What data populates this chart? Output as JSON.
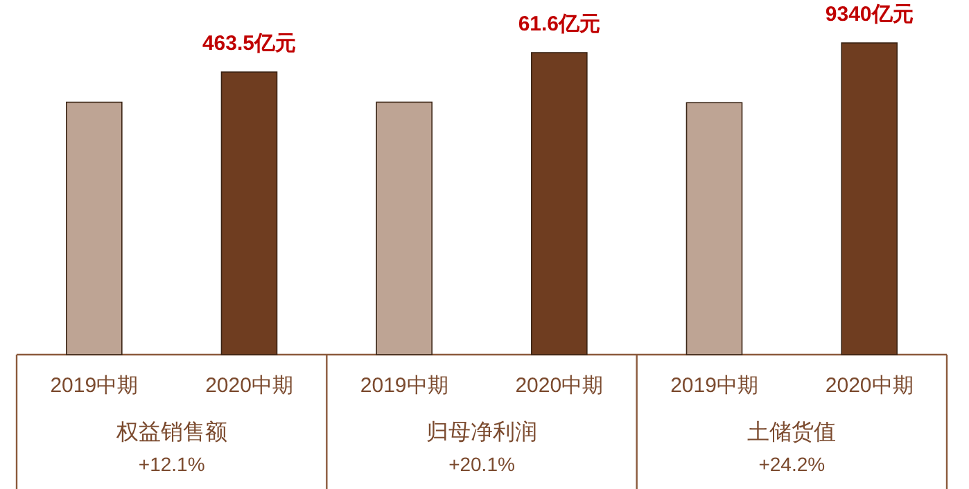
{
  "chart_data": [
    {
      "type": "bar",
      "categories": [
        "2019中期",
        "2020中期"
      ],
      "values": [
        414,
        463.5
      ],
      "colors": [
        "#bea494",
        "#6f3d20"
      ],
      "value_labels": [
        null,
        "463.5亿元"
      ],
      "xlabel": "权益销售额",
      "annotations": [
        "+12.1%"
      ]
    },
    {
      "type": "bar",
      "categories": [
        "2019中期",
        "2020中期"
      ],
      "values": [
        51.5,
        61.6
      ],
      "colors": [
        "#bea494",
        "#6f3d20"
      ],
      "value_labels": [
        null,
        "61.6亿元"
      ],
      "xlabel": "归母净利润",
      "annotations": [
        "+20.1%"
      ]
    },
    {
      "type": "bar",
      "categories": [
        "2019中期",
        "2020中期"
      ],
      "values": [
        7550,
        9340
      ],
      "colors": [
        "#bea494",
        "#6f3d20"
      ],
      "value_labels": [
        null,
        "9340亿元"
      ],
      "xlabel": "土储货值",
      "annotations": [
        "+24.2%"
      ]
    }
  ]
}
